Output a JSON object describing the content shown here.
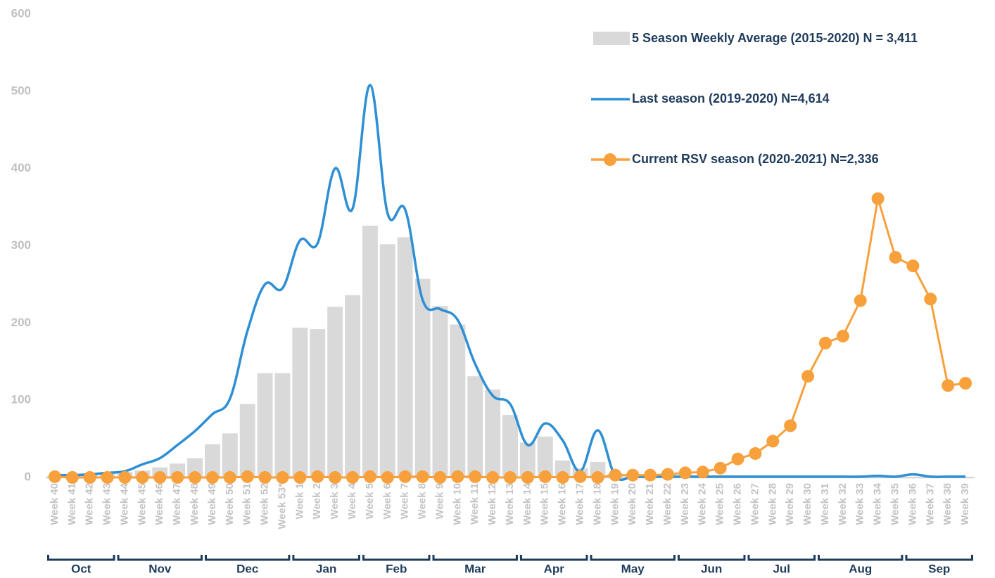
{
  "chart_data": {
    "type": "combo",
    "categories": [
      "Week 40",
      "Week 41",
      "Week 42",
      "Week 43",
      "Week 44",
      "Week 45",
      "Week 46",
      "Week 47",
      "Week 48",
      "Week 49",
      "Week 50",
      "Week 51",
      "Week 52",
      "Week 53*",
      "Week 1",
      "Week 2",
      "Week 3",
      "Week 4",
      "Week 5",
      "Week 6",
      "Week 7",
      "Week 8",
      "Week 9",
      "Week 10",
      "Week 11",
      "Week 12",
      "Week 13",
      "Week 14",
      "Week 15",
      "Week 16",
      "Week 17",
      "Week 18",
      "Week 19",
      "Week 20",
      "Week 21",
      "Week 22",
      "Week 23",
      "Week 24",
      "Week 25",
      "Week 26",
      "Week 27",
      "Week 28",
      "Week 29",
      "Week 30",
      "Week 31",
      "Week 32",
      "Week 33",
      "Week 34",
      "Week 35",
      "Week 36",
      "Week 37",
      "Week 38",
      "Week 39"
    ],
    "months": [
      "Oct",
      "Nov",
      "Dec",
      "Jan",
      "Feb",
      "Mar",
      "Apr",
      "May",
      "Jun",
      "Jul",
      "Aug",
      "Sep"
    ],
    "series": [
      {
        "name": "5 Season Weekly Average (2015-2020) N = 3,411",
        "type": "bar",
        "color": "#d9d9d9",
        "values": [
          2,
          3,
          4,
          5,
          7,
          9,
          13,
          18,
          25,
          43,
          57,
          95,
          135,
          135,
          194,
          192,
          221,
          236,
          326,
          302,
          311,
          257,
          222,
          198,
          131,
          114,
          81,
          45,
          53,
          22,
          12,
          20,
          5,
          3,
          2,
          1,
          1,
          1,
          1,
          1,
          1,
          1,
          1,
          1,
          1,
          1,
          1,
          1,
          1,
          1,
          1,
          1,
          1
        ]
      },
      {
        "name": "Last season (2019-2020) N=4,614",
        "type": "line",
        "smooth": true,
        "color": "#2e8fd4",
        "values": [
          3,
          3,
          4,
          6,
          8,
          17,
          25,
          42,
          60,
          82,
          102,
          190,
          250,
          245,
          307,
          303,
          400,
          348,
          508,
          342,
          347,
          230,
          218,
          204,
          147,
          106,
          95,
          42,
          70,
          48,
          8,
          61,
          2,
          1,
          1,
          1,
          1,
          1,
          1,
          1,
          1,
          1,
          1,
          1,
          1,
          1,
          1,
          2,
          1,
          4,
          1,
          1,
          1
        ]
      },
      {
        "name": "Current RSV season (2020-2021) N=2,336",
        "type": "line",
        "markers": true,
        "color": "#f7a03c",
        "values": [
          1,
          0,
          0,
          0,
          0,
          0,
          0,
          0,
          0,
          0,
          0,
          1,
          0,
          0,
          0,
          1,
          0,
          0,
          1,
          0,
          1,
          1,
          0,
          1,
          1,
          0,
          0,
          0,
          1,
          0,
          1,
          0,
          3,
          3,
          3,
          4,
          6,
          7,
          12,
          24,
          31,
          47,
          67,
          131,
          174,
          183,
          229,
          361,
          285,
          274,
          231,
          119,
          122
        ]
      }
    ],
    "ylim": [
      0,
      600
    ],
    "yticks": [
      0,
      100,
      200,
      300,
      400,
      500,
      600
    ],
    "grid": false
  }
}
